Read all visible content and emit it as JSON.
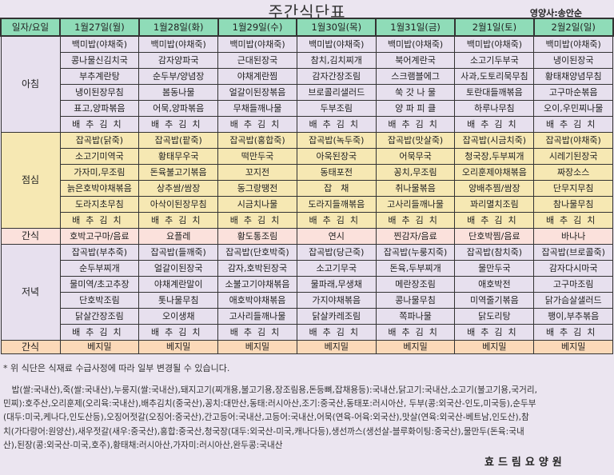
{
  "title": "주간식단표",
  "nutritionist": "영양사:송안순",
  "header": {
    "corner": "일자/요일",
    "days": [
      "1월27일(월)",
      "1월28일(화)",
      "1월29일(수)",
      "1월30일(목)",
      "1월31일(금)",
      "2월1일(토)",
      "2월2일(일)"
    ]
  },
  "meals": [
    {
      "label": "아침",
      "type": "breakfast",
      "rows": [
        [
          "백미밥(야채죽)",
          "백미밥(야채죽)",
          "백미밥(야채죽)",
          "백미밥(야채죽)",
          "백미밥(야채죽)",
          "백미밥(야채죽)",
          "백미밥(야채죽)"
        ],
        [
          "콩나물신김치국",
          "감자양파국",
          "근대된장국",
          "참치,김치찌개",
          "북어계란국",
          "소고기두부국",
          "냉이된장국"
        ],
        [
          "부추계란탕",
          "순두부/양념장",
          "야채계란찜",
          "감자간장조림",
          "스크램블에그",
          "사과,도토리묵무침",
          "황태채양념무침"
        ],
        [
          "냉이된장무침",
          "봄동나물",
          "얼갈이된장볶음",
          "브로콜리샐러드",
          "쑥 갓 나 물",
          "토란대들깨볶음",
          "고구마순볶음"
        ],
        [
          "표고,양파볶음",
          "어묵,양파볶음",
          "무채들깨나물",
          "두부조림",
          "양 파 피 클",
          "하루나무침",
          "오이,우민찌나물"
        ],
        [
          "배추김치",
          "배추김치",
          "배추김치",
          "배추김치",
          "배추김치",
          "배추김치",
          "배추김치"
        ]
      ]
    },
    {
      "label": "점심",
      "type": "lunch",
      "rows": [
        [
          "잡곡밥(닭죽)",
          "잡곡밥(팥죽)",
          "잡곡밥(홍합죽)",
          "잡곡밥(녹두죽)",
          "잡곡밥(맛살죽)",
          "잡곡밥(시금치죽)",
          "잡곡밥(야채죽)"
        ],
        [
          "소고기미역국",
          "황태무우국",
          "떡만두국",
          "아욱된장국",
          "어묵무국",
          "청국장,두부찌개",
          "시레기된장국"
        ],
        [
          "가자미,무조림",
          "돈육불고기볶음",
          "꼬지전",
          "동태포전",
          "꽁치,무조림",
          "오리훈제야채볶음",
          "짜장소스"
        ],
        [
          "늙은호박야채볶음",
          "상추쌈/쌈장",
          "동그랑땡전",
          "잡　채",
          "취나물볶음",
          "양배추찜/쌈장",
          "단무지무침"
        ],
        [
          "도라지초무침",
          "아삭이된장무침",
          "시금치나물",
          "도라지들깨볶음",
          "고사리들깨나물",
          "꽈리멸치조림",
          "참나물무침"
        ],
        [
          "배추김치",
          "배추김치",
          "배추김치",
          "배추김치",
          "배추김치",
          "배추김치",
          "배추김치"
        ]
      ]
    },
    {
      "label": "간식",
      "type": "snack1",
      "rows": [
        [
          "호박고구마/음료",
          "요플레",
          "황도통조림",
          "연시",
          "찐감자/음료",
          "단호박찜/음료",
          "바나나"
        ]
      ]
    },
    {
      "label": "저녁",
      "type": "dinner",
      "rows": [
        [
          "잡곡밥(부추죽)",
          "잡곡밥(들깨죽)",
          "잡곡밥(단호박죽)",
          "잡곡밥(당근죽)",
          "잡곡밥(누룽지죽)",
          "잡곡밥(참치죽)",
          "잡곡밥(브로콜죽)"
        ],
        [
          "순두부찌개",
          "얼갈이된장국",
          "감자,호박된장국",
          "소고기무국",
          "돈육,두부찌개",
          "물만두국",
          "감자다시마국"
        ],
        [
          "물미역/초고추장",
          "야채계란말이",
          "소불고기야채볶음",
          "물파래,무생채",
          "메란장조림",
          "애호박전",
          "고구마조림"
        ],
        [
          "단호박조림",
          "톳나물무침",
          "애호박야채볶음",
          "가지야채볶음",
          "콩나물무침",
          "미역줄기볶음",
          "닭가슴살샐러드"
        ],
        [
          "닭살간장조림",
          "오이생채",
          "고사리들깨나물",
          "닭살카레조림",
          "쪽파나물",
          "닭도리탕",
          "팽이,부추볶음"
        ],
        [
          "배추김치",
          "배추김치",
          "배추김치",
          "배추김치",
          "배추김치",
          "배추김치",
          "배추김치"
        ]
      ]
    },
    {
      "label": "간식",
      "type": "snack2",
      "rows": [
        [
          "베지밀",
          "베지밀",
          "베지밀",
          "베지밀",
          "베지밀",
          "베지밀",
          "베지밀"
        ]
      ]
    }
  ],
  "note": "* 위 식단은 식재료 수급사정에 따라 일부 변경될 수 있습니다.",
  "origin_lines": [
    "　밥(쌀:국내산),죽(쌀:국내산),누룽지(쌀:국내산),돼지고기(찌개용,불고기용,장조림용,돈등뼈,잡채용등):국내산,닭고기:국내산,소고기(불고기용,국거리,",
    "민찌):호주산,오리훈제(오리육:국내산),배추김치(중국산),꽁치:대만산,동태:러시아산,조기:중국산,동태포:러시아산, 두부(콩:외국산-인도,미국등),순두부",
    "(대두:미국,케나다,인도산등),오징어젓갈(오징어:중국산),간고등어:국내산,고등어:국내산,어묵(연육-어육:외국산),맛살(연육:외국산-베트남,인도산),참",
    "치(가다랑어:원양산),새우젓갈(새우:중국산),홍합:중국산,청국장(대두:외국산-미국,캐나다등),생선까스(생선살-블루화이팅:중국산),물만두(돈육:국내",
    "산),된장(콩:외국산-미국,호주),황태채:러시아산,가자미:러시아산,완두콩:국내산"
  ],
  "footer": "효드림요양원"
}
